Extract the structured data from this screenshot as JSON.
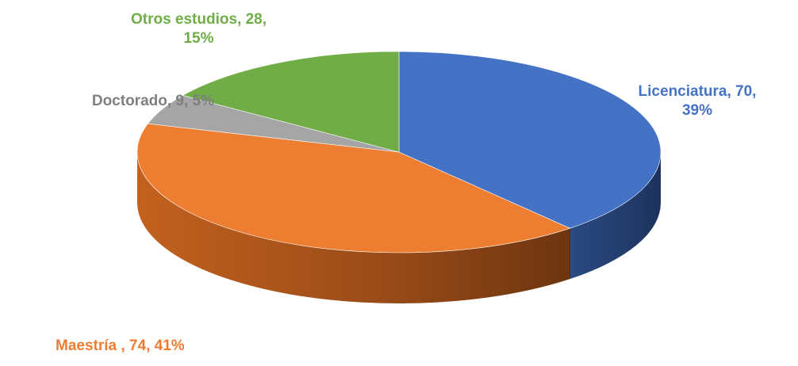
{
  "chart_data": {
    "type": "pie",
    "three_d": true,
    "legend": "none",
    "slices": [
      {
        "name": "Licenciatura",
        "value": 70,
        "percent": "39%",
        "color": "#4472c4",
        "label_lines": [
          "Licenciatura, 70,",
          "39%"
        ]
      },
      {
        "name": "Maestría ",
        "value": 74,
        "percent": "41%",
        "color": "#ed7d31",
        "label_lines": [
          "Maestría , 74, 41%"
        ]
      },
      {
        "name": "Doctorado",
        "value": 9,
        "percent": "5%",
        "color": "#a5a5a5",
        "label_lines": [
          "Doctorado, 9, 5%"
        ]
      },
      {
        "name": "Otros estudios",
        "value": 28,
        "percent": "15%",
        "color": "#70ad47",
        "label_lines": [
          "Otros estudios, 28,",
          "15%"
        ]
      }
    ]
  }
}
